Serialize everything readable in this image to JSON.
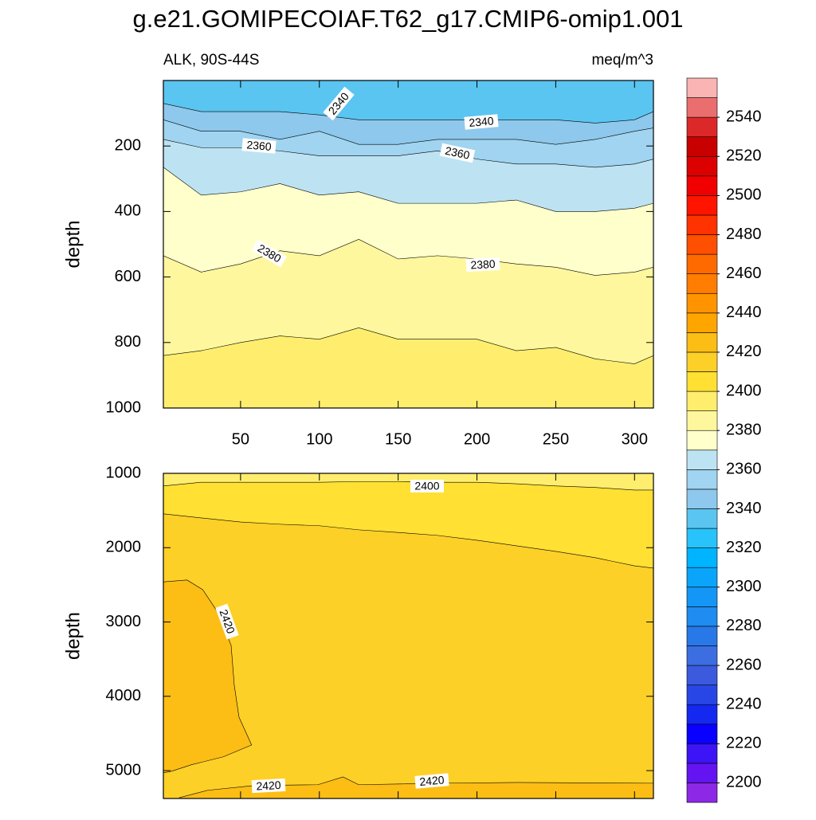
{
  "title": "g.e21.GOMIPECOIAF.T62_g17.CMIP6-omip1.001",
  "left_string": "ALK, 90S-44S",
  "right_string": "meq/m^3",
  "colorbar": {
    "levels": [
      2200,
      2210,
      2220,
      2230,
      2240,
      2250,
      2260,
      2270,
      2280,
      2290,
      2300,
      2310,
      2320,
      2330,
      2340,
      2350,
      2360,
      2370,
      2380,
      2390,
      2400,
      2410,
      2420,
      2430,
      2440,
      2450,
      2460,
      2470,
      2480,
      2490,
      2500,
      2510,
      2520,
      2530,
      2540,
      2550
    ],
    "colors": [
      "#8c28e6",
      "#6414f0",
      "#3c14f5",
      "#0a00ff",
      "#1428f0",
      "#2846e6",
      "#3c5ade",
      "#3c6ee1",
      "#2878e8",
      "#1e8cf0",
      "#1496f7",
      "#0aa5fa",
      "#00b4ff",
      "#28c3fa",
      "#5ac5f0",
      "#8ec8ec",
      "#a0d4f0",
      "#bde3f3",
      "#ffffcc",
      "#fff79d",
      "#ffee6e",
      "#ffe033",
      "#fdd028",
      "#fcbd15",
      "#ffa500",
      "#ff9400",
      "#ff7d00",
      "#ff6a00",
      "#ff4f00",
      "#ff3300",
      "#ff1400",
      "#f00000",
      "#dc0000",
      "#c80000",
      "#dc2828",
      "#eb6e6e",
      "#fab4b4"
    ],
    "ticks": [
      2200,
      2220,
      2240,
      2260,
      2280,
      2300,
      2320,
      2340,
      2360,
      2380,
      2400,
      2420,
      2440,
      2460,
      2480,
      2500,
      2520,
      2540
    ]
  },
  "chart_data": [
    {
      "type": "contour",
      "ylabel": "depth",
      "xlim": [
        1,
        312
      ],
      "xticks": [
        50,
        100,
        150,
        200,
        250,
        300
      ],
      "xtick_labels": true,
      "ylim": [
        0,
        1000
      ],
      "yticks": [
        200,
        400,
        600,
        800,
        1000
      ],
      "y_reversed": true,
      "contours": [
        {
          "level": 2340,
          "x": [
            1,
            25,
            50,
            75,
            100,
            125,
            150,
            175,
            200,
            225,
            250,
            275,
            300,
            312
          ],
          "y": [
            70,
            95,
            95,
            95,
            105,
            120,
            120,
            120,
            120,
            120,
            120,
            130,
            120,
            95
          ]
        },
        {
          "level": 2350,
          "x": [
            1,
            25,
            50,
            75,
            100,
            125,
            150,
            175,
            200,
            225,
            250,
            275,
            300,
            312
          ],
          "y": [
            120,
            155,
            155,
            180,
            155,
            195,
            195,
            180,
            180,
            180,
            195,
            180,
            155,
            145
          ]
        },
        {
          "level": 2360,
          "x": [
            1,
            25,
            50,
            75,
            100,
            125,
            150,
            175,
            200,
            225,
            250,
            275,
            300,
            312
          ],
          "y": [
            180,
            205,
            205,
            215,
            230,
            230,
            230,
            215,
            240,
            255,
            255,
            265,
            255,
            240
          ]
        },
        {
          "level": 2370,
          "x": [
            1,
            25,
            50,
            75,
            100,
            125,
            150,
            175,
            200,
            225,
            250,
            275,
            300,
            312
          ],
          "y": [
            265,
            350,
            340,
            315,
            350,
            340,
            375,
            375,
            375,
            365,
            400,
            400,
            390,
            375
          ]
        },
        {
          "level": 2380,
          "x": [
            1,
            25,
            50,
            75,
            100,
            125,
            150,
            175,
            200,
            225,
            250,
            275,
            300,
            312
          ],
          "y": [
            535,
            585,
            560,
            520,
            535,
            485,
            545,
            535,
            545,
            560,
            570,
            595,
            585,
            570
          ]
        },
        {
          "level": 2390,
          "x": [
            1,
            25,
            50,
            75,
            100,
            125,
            150,
            175,
            200,
            225,
            250,
            275,
            300,
            312
          ],
          "y": [
            840,
            825,
            800,
            780,
            790,
            755,
            790,
            790,
            790,
            825,
            815,
            850,
            865,
            840
          ]
        }
      ]
    },
    {
      "type": "contour",
      "ylabel": "depth",
      "xlim": [
        1,
        312
      ],
      "xticks": [
        50,
        100,
        150,
        200,
        250,
        300
      ],
      "xtick_labels": false,
      "ylim": [
        1000,
        5375
      ],
      "yticks": [
        1000,
        2000,
        3000,
        4000,
        5000
      ],
      "y_reversed": true,
      "contours": [
        {
          "level": 2400,
          "x": [
            1,
            25,
            50,
            75,
            100,
            125,
            150,
            175,
            200,
            225,
            250,
            275,
            300,
            312
          ],
          "y": [
            1170,
            1120,
            1120,
            1120,
            1120,
            1110,
            1110,
            1120,
            1120,
            1140,
            1170,
            1190,
            1225,
            1225
          ]
        },
        {
          "level": 2410,
          "x": [
            1,
            25,
            50,
            75,
            100,
            125,
            150,
            175,
            200,
            225,
            250,
            275,
            300,
            312
          ],
          "y": [
            1545,
            1600,
            1655,
            1685,
            1705,
            1760,
            1795,
            1835,
            1900,
            1975,
            2050,
            2135,
            2245,
            2275
          ]
        },
        {
          "level": 2420,
          "x": [
            1,
            16,
            26,
            36,
            44,
            46,
            49,
            57,
            39,
            19,
            6,
            1
          ],
          "y": [
            2460,
            2435,
            2565,
            2885,
            3315,
            3850,
            4280,
            4655,
            4815,
            4920,
            5010,
            5030
          ]
        },
        {
          "level": 2420,
          "x": [
            11,
            29,
            59,
            99,
            115,
            125,
            175,
            226,
            312
          ],
          "y": [
            5365,
            5265,
            5200,
            5190,
            5085,
            5190,
            5170,
            5160,
            5170
          ]
        }
      ]
    }
  ]
}
